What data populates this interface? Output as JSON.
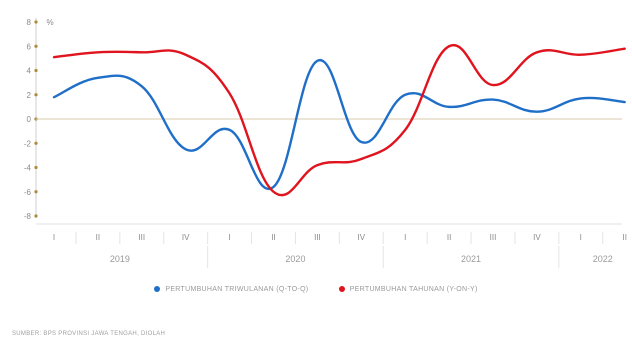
{
  "chart_data": {
    "type": "line",
    "ylabel": "%",
    "ylim": [
      -8,
      8
    ],
    "yticks": [
      8,
      6,
      4,
      2,
      0,
      -2,
      -4,
      -6,
      -8
    ],
    "grid": false,
    "legend_position": "bottom",
    "x": [
      "I",
      "II",
      "III",
      "IV",
      "I",
      "II",
      "III",
      "IV",
      "I",
      "II",
      "III",
      "IV",
      "I",
      "II"
    ],
    "years": [
      {
        "label": "2019",
        "from": 0,
        "to": 3
      },
      {
        "label": "2020",
        "from": 4,
        "to": 7
      },
      {
        "label": "2021",
        "from": 8,
        "to": 11
      },
      {
        "label": "2022",
        "from": 12,
        "to": 13
      }
    ],
    "series": [
      {
        "name": "PERTUMBUHAN TRIWULANAN (Q-TO-Q)",
        "color": "#1f6fc9",
        "values": [
          1.8,
          3.4,
          2.7,
          -2.5,
          -0.9,
          -5.6,
          4.8,
          -1.9,
          2.0,
          1.0,
          1.6,
          0.6,
          1.7,
          1.4
        ]
      },
      {
        "name": "PERTUMBUHAN TAHUNAN (Y-ON-Y)",
        "color": "#e0141e",
        "values": [
          5.1,
          5.5,
          5.5,
          5.3,
          2.1,
          -6.0,
          -3.8,
          -3.3,
          -0.9,
          6.0,
          2.8,
          5.5,
          5.3,
          5.8
        ]
      }
    ]
  },
  "legend": {
    "qtq_label": "PERTUMBUHAN TRIWULANAN (Q-TO-Q)",
    "yoy_label": "PERTUMBUHAN TAHUNAN (Y-ON-Y)"
  },
  "colors": {
    "zero_line": "#d8c9a8",
    "axis": "#cfcfcf",
    "axis_dot": "#b08a3a"
  },
  "source": "SUMBER: BPS PROVINSI JAWA TENGAH, DIOLAH"
}
